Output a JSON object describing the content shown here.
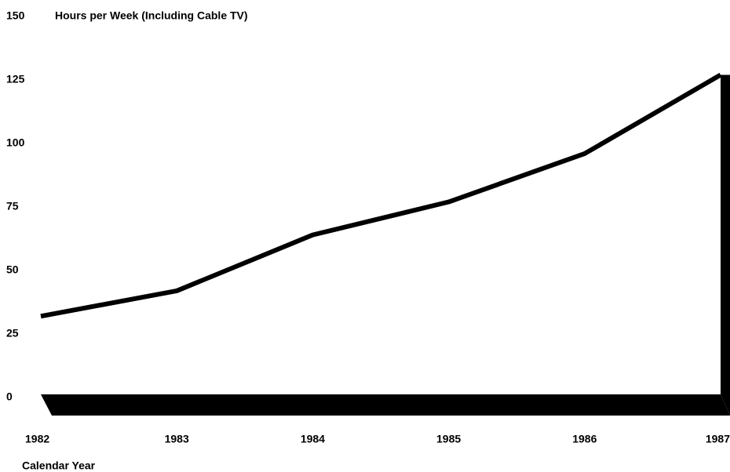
{
  "chart_data": {
    "type": "line",
    "title": "Hours per Week (Including Cable TV)",
    "x_label": "Calendar Year",
    "categories": [
      "1982",
      "1983",
      "1984",
      "1985",
      "1986",
      "1987"
    ],
    "series": [
      {
        "name": "Hours per Week",
        "color": "#000000",
        "values": [
          32,
          42,
          64,
          77,
          96,
          127
        ]
      }
    ],
    "ylim": [
      0,
      150
    ],
    "yticks": [
      0,
      25,
      50,
      75,
      100,
      125,
      150
    ],
    "grid": false
  }
}
